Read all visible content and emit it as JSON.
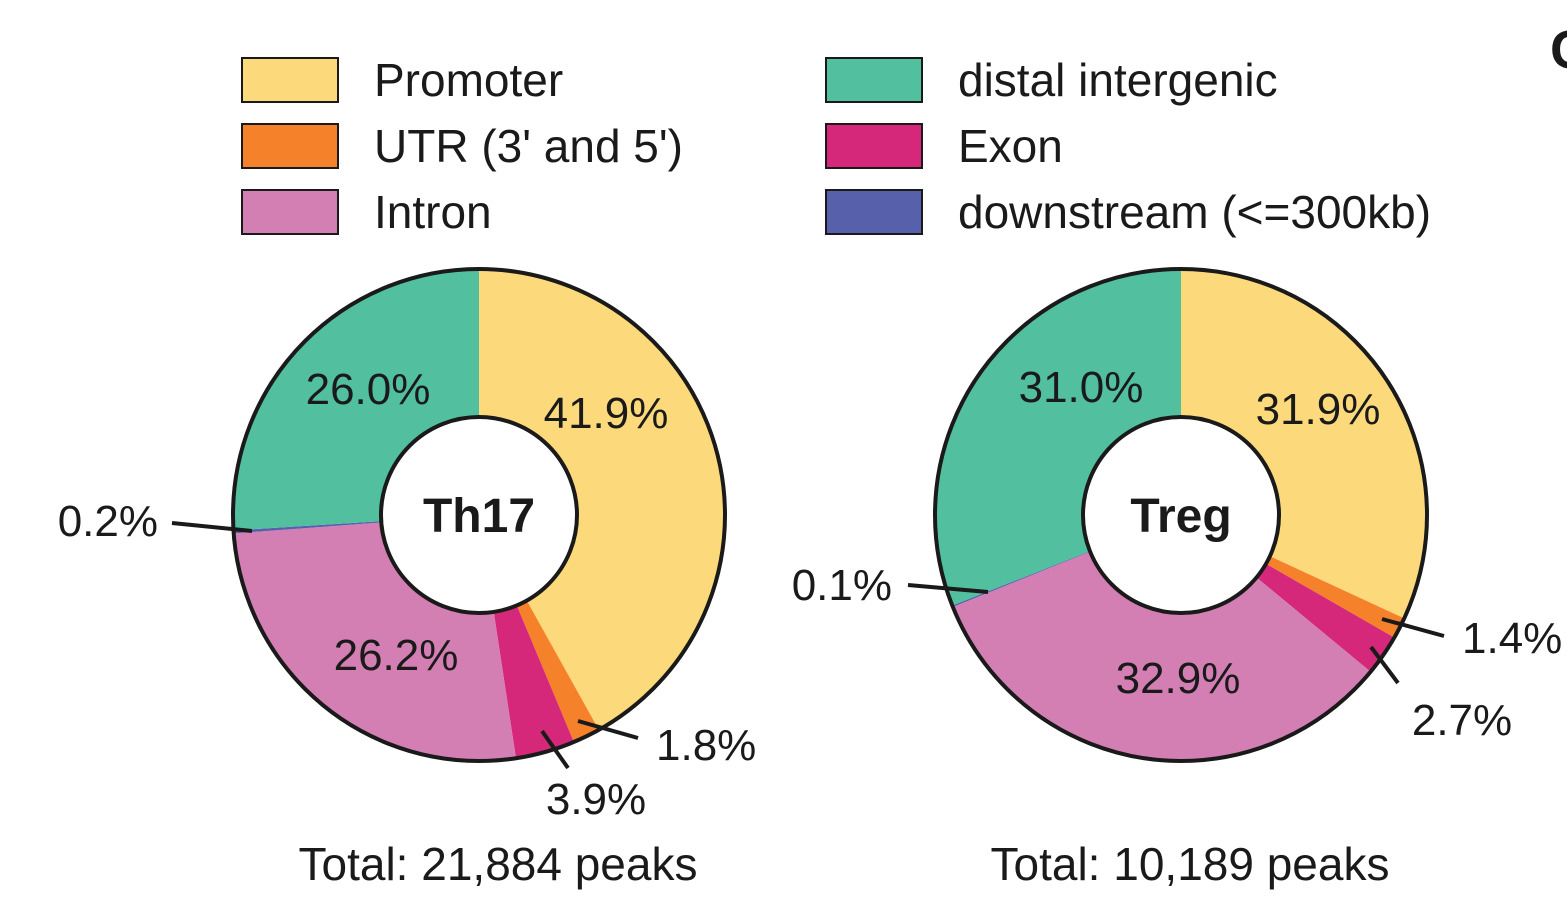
{
  "panel_letter": "C",
  "legend": [
    {
      "label": "Promoter",
      "color": "#fcd97a"
    },
    {
      "label": "UTR (3' and 5')",
      "color": "#f5812a"
    },
    {
      "label": "Intron",
      "color": "#d47fb4"
    },
    {
      "label": "distal intergenic",
      "color": "#52bf9f"
    },
    {
      "label": "Exon",
      "color": "#d5287a"
    },
    {
      "label": "downstream (<=300kb)",
      "color": "#5761ab"
    }
  ],
  "chart_data": [
    {
      "type": "pie",
      "center_label": "Th17",
      "total_label": "Total: 21,884 peaks",
      "slices": [
        {
          "category": "Promoter",
          "value": 41.9,
          "label": "41.9%"
        },
        {
          "category": "UTR (3' and 5')",
          "value": 1.8,
          "label": "1.8%"
        },
        {
          "category": "Exon",
          "value": 3.9,
          "label": "3.9%"
        },
        {
          "category": "Intron",
          "value": 26.2,
          "label": "26.2%"
        },
        {
          "category": "downstream (<=300kb)",
          "value": 0.2,
          "label": "0.2%"
        },
        {
          "category": "distal intergenic",
          "value": 26.0,
          "label": "26.0%"
        }
      ]
    },
    {
      "type": "pie",
      "center_label": "Treg",
      "total_label": "Total: 10,189 peaks",
      "slices": [
        {
          "category": "Promoter",
          "value": 31.9,
          "label": "31.9%"
        },
        {
          "category": "UTR (3' and 5')",
          "value": 1.4,
          "label": "1.4%"
        },
        {
          "category": "Exon",
          "value": 2.7,
          "label": "2.7%"
        },
        {
          "category": "Intron",
          "value": 32.9,
          "label": "32.9%"
        },
        {
          "category": "downstream (<=300kb)",
          "value": 0.1,
          "label": "0.1%"
        },
        {
          "category": "distal intergenic",
          "value": 31.0,
          "label": "31.0%"
        }
      ]
    }
  ]
}
